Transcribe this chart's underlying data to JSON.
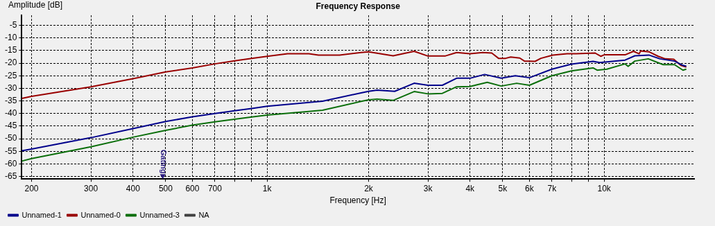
{
  "chart_data": {
    "type": "line",
    "title": "Frequency Response",
    "xlabel": "Frequency [Hz]",
    "ylabel": "Amplitude [dB]",
    "log": "x",
    "grid": true,
    "legend": "bottom left",
    "marker": "none",
    "line_style": "solid",
    "xlim": [
      187,
      18500
    ],
    "ylim": [
      -66,
      -1
    ],
    "xticks": [
      200,
      300,
      400,
      500,
      600,
      700,
      {
        "value": 800,
        "label": null
      },
      {
        "value": 900,
        "label": null
      },
      {
        "value": 1000,
        "label": "1k"
      },
      {
        "value": 2000,
        "label": "2k"
      },
      {
        "value": 3000,
        "label": "3k"
      },
      {
        "value": 4000,
        "label": "4k"
      },
      {
        "value": 5000,
        "label": "5k"
      },
      {
        "value": 6000,
        "label": "6k"
      },
      {
        "value": 7000,
        "label": "7k"
      },
      {
        "value": 8000,
        "label": null
      },
      {
        "value": 9000,
        "label": null
      },
      {
        "value": 10000,
        "label": "10k"
      }
    ],
    "yticks": [
      -5,
      -10,
      -15,
      -20,
      -25,
      -30,
      -35,
      -40,
      -45,
      -50,
      -55,
      -60,
      -65
    ],
    "annotations": [
      {
        "text": "Gating",
        "x": 490,
        "y": -65
      }
    ],
    "series": [
      {
        "name": "Unnamed-1",
        "color": "#00008b",
        "x": [
          187,
          200,
          300,
          400,
          500,
          600,
          700,
          800,
          900,
          1000,
          1460,
          1900,
          2000,
          2120,
          2390,
          2730,
          3000,
          3310,
          3650,
          4000,
          4420,
          4950,
          5450,
          6000,
          7000,
          8000,
          9270,
          9700,
          11540,
          12330,
          13580,
          14640,
          16170,
          17130,
          17530
        ],
        "values": [
          -54.8,
          -54.1,
          -49.6,
          -46.0,
          -43.2,
          -41.3,
          -40.0,
          -38.9,
          -38.0,
          -37.1,
          -35.1,
          -31.8,
          -31.2,
          -30.7,
          -31.2,
          -28.0,
          -28.8,
          -28.8,
          -26.0,
          -26.0,
          -24.5,
          -26.0,
          -25.0,
          -25.8,
          -22.4,
          -20.4,
          -19.3,
          -19.8,
          -18.8,
          -17.1,
          -16.8,
          -18.3,
          -19.2,
          -20.9,
          -21.2
        ]
      },
      {
        "name": "Unnamed-0",
        "color": "#990000",
        "x": [
          187,
          200,
          300,
          400,
          500,
          600,
          700,
          800,
          900,
          1000,
          1150,
          1330,
          1420,
          1640,
          1900,
          2000,
          2365,
          2730,
          3000,
          3370,
          3650,
          4000,
          4360,
          4640,
          4860,
          5100,
          5280,
          5620,
          5800,
          6240,
          6490,
          7040,
          7760,
          8250,
          9400,
          9770,
          10000,
          11540,
          12220,
          12700,
          12830,
          13580,
          14470,
          15180,
          16090,
          16880,
          17530
        ],
        "values": [
          -34.0,
          -33.2,
          -29.4,
          -26.2,
          -23.5,
          -21.9,
          -20.3,
          -19.1,
          -18.1,
          -17.3,
          -16.3,
          -16.3,
          -16.8,
          -16.8,
          -15.8,
          -15.5,
          -17.1,
          -15.3,
          -17.2,
          -17.2,
          -15.8,
          -16.3,
          -15.8,
          -16.0,
          -18.1,
          -18.1,
          -17.6,
          -18.0,
          -19.2,
          -19.3,
          -18.1,
          -16.8,
          -16.3,
          -16.3,
          -16.0,
          -17.3,
          -16.7,
          -16.7,
          -15.3,
          -16.3,
          -15.2,
          -15.5,
          -17.3,
          -18.3,
          -18.5,
          -20.9,
          -21.6
        ]
      },
      {
        "name": "Unnamed-3",
        "color": "#0a6e0a",
        "x": [
          187,
          200,
          300,
          400,
          500,
          600,
          700,
          800,
          900,
          1000,
          1460,
          1900,
          2000,
          2120,
          2365,
          2730,
          3000,
          3310,
          3650,
          4000,
          4500,
          4950,
          5500,
          6000,
          7000,
          8000,
          9270,
          9530,
          10190,
          11540,
          11780,
          12330,
          13520,
          14960,
          16170,
          17130,
          17530
        ],
        "values": [
          -58.9,
          -57.9,
          -53.2,
          -49.4,
          -46.7,
          -44.6,
          -43.3,
          -42.3,
          -41.4,
          -40.6,
          -38.7,
          -35.2,
          -34.6,
          -34.3,
          -34.8,
          -31.3,
          -32.2,
          -32.0,
          -29.4,
          -29.3,
          -27.6,
          -29.1,
          -28.0,
          -28.8,
          -25.0,
          -23.1,
          -21.9,
          -22.8,
          -22.4,
          -20.3,
          -21.3,
          -19.2,
          -18.3,
          -20.6,
          -20.6,
          -22.8,
          -22.4
        ]
      },
      {
        "name": "NA",
        "color": "#404040"
      }
    ]
  }
}
